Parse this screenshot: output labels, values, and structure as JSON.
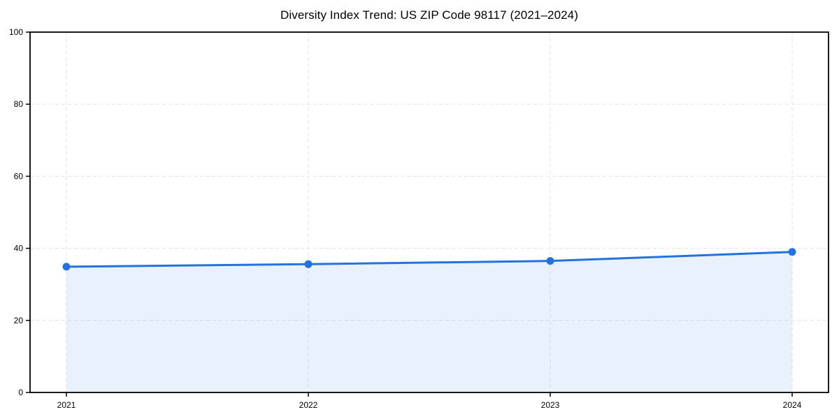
{
  "chart": {
    "title": "Diversity Index Trend: US ZIP Code 98117 (2021–2024)"
  },
  "chart_data": {
    "type": "area",
    "title": "Diversity Index Trend: US ZIP Code 98117 (2021–2024)",
    "categories": [
      "2021",
      "2022",
      "2023",
      "2024"
    ],
    "values": [
      34.9,
      35.6,
      36.5,
      39.0
    ],
    "xlabel": "",
    "ylabel": "",
    "ylim": [
      0,
      100
    ],
    "yticks": [
      0,
      20,
      40,
      60,
      80,
      100
    ],
    "grid": "dashed-both-axes",
    "legend": "none",
    "line_color": "#2272e0",
    "marker_color": "#2272e0",
    "marker_shape": "circle",
    "fill_color": "#2272e0",
    "fill_opacity": 0.1,
    "gridline_color": "#e2e2e2",
    "axis_color": "#000000",
    "background_color": "#ffffff"
  }
}
